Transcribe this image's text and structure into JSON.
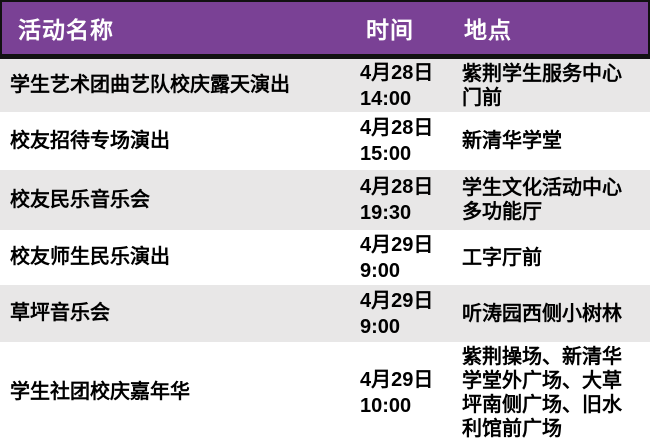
{
  "meta": {
    "accent_purple": "#7a4195",
    "row_gray": "#e8e7e7",
    "row_white": "#ffffff",
    "border_black": "#111111",
    "header_text_color": "#ffffff",
    "body_text_color": "#000000"
  },
  "table": {
    "header": {
      "name": "活动名称",
      "time": "时间",
      "location": "地点"
    },
    "rows": [
      {
        "name": "学生艺术团曲艺队校庆露天演出",
        "date": "4月28日",
        "time": "14:00",
        "location": "紫荆学生服务中心门前"
      },
      {
        "name": "校友招待专场演出",
        "date": "4月28日",
        "time": "15:00",
        "location": "新清华学堂"
      },
      {
        "name": "校友民乐音乐会",
        "date": "4月28日",
        "time": "19:30",
        "location": "学生文化活动中心多功能厅"
      },
      {
        "name": "校友师生民乐演出",
        "date": "4月29日",
        "time": "9:00",
        "location": "工字厅前"
      },
      {
        "name": "草坪音乐会",
        "date": "4月29日",
        "time": "9:00",
        "location": "听涛园西侧小树林"
      },
      {
        "name": "学生社团校庆嘉年华",
        "date": "4月29日",
        "time": "10:00",
        "location": "紫荆操场、新清华学堂外广场、大草坪南侧广场、旧水利馆前广场"
      }
    ]
  }
}
